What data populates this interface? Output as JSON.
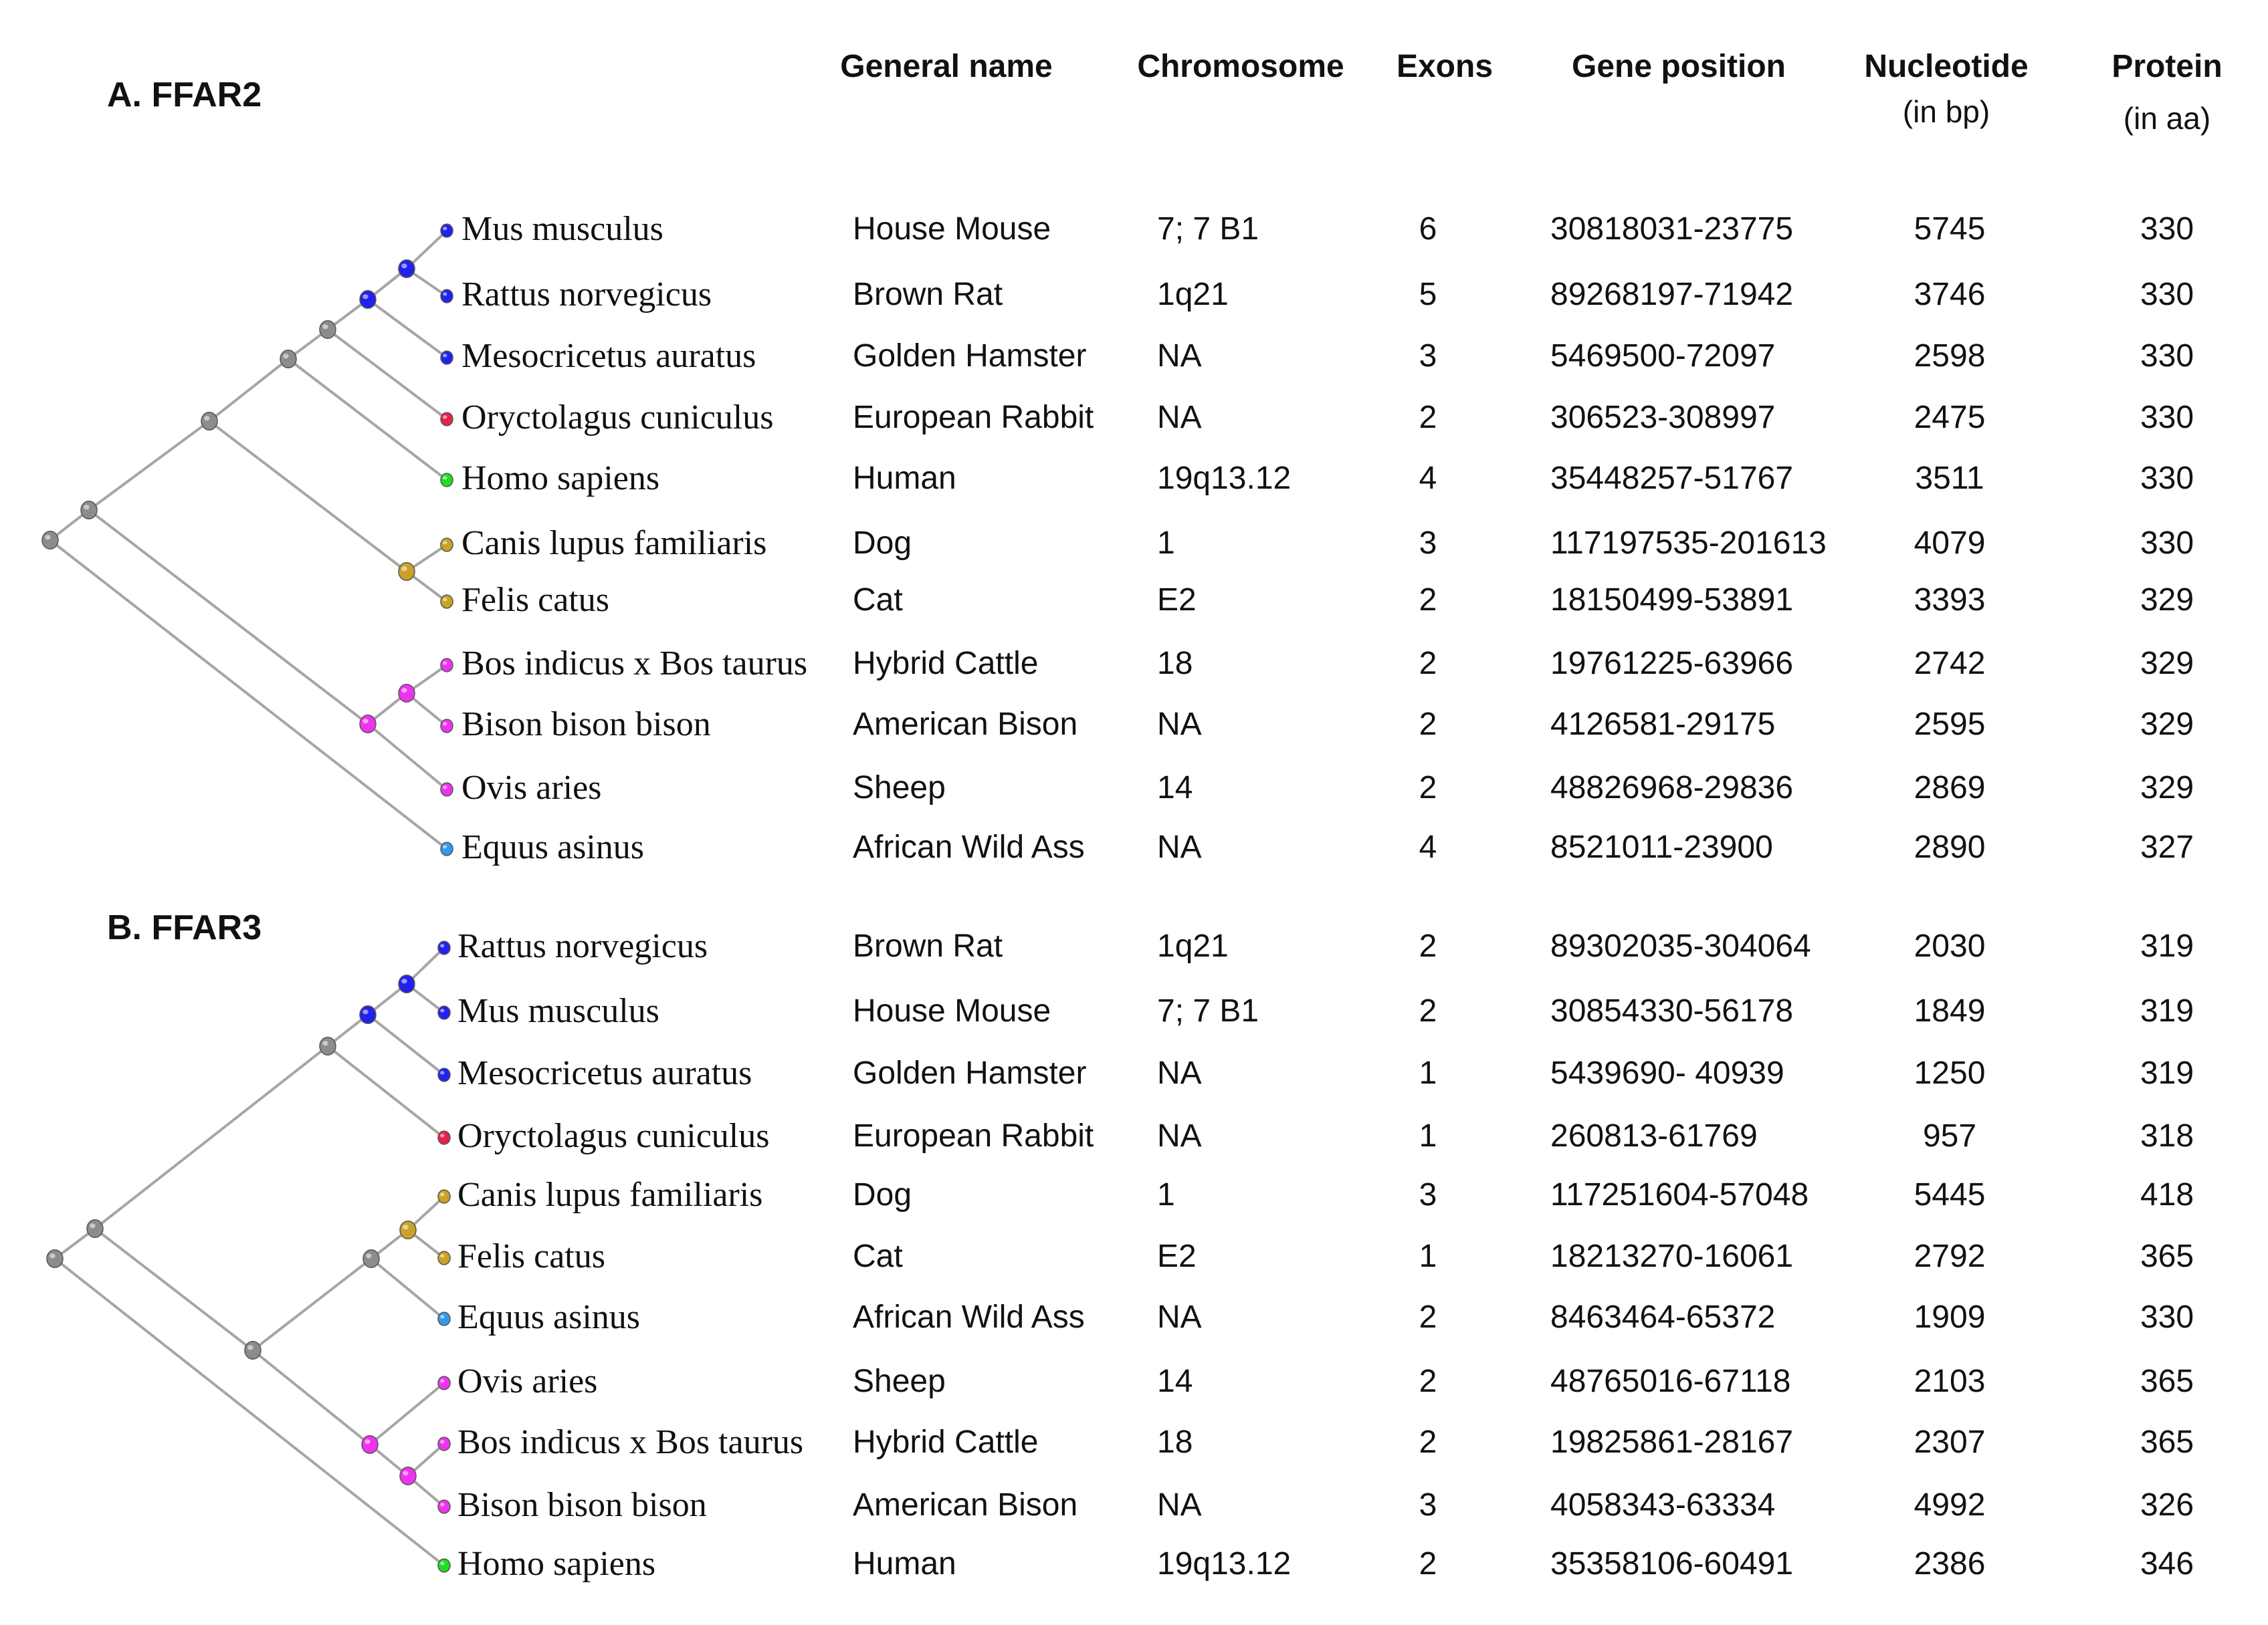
{
  "headers": {
    "general_name": "General name",
    "chromosome": "Chromosome",
    "exons": "Exons",
    "gene_position": "Gene position",
    "nucleotide": "Nucleotide",
    "nucleotide_unit": "(in bp)",
    "protein": "Protein",
    "protein_unit": "(in aa)"
  },
  "colors": {
    "branch": "#a6a6a6",
    "internal_node": "#8c8c8c",
    "rodent": "#2222ee",
    "lagomorph": "#e8214f",
    "primate": "#22dd22",
    "carnivore": "#c9a227",
    "bovid": "#ee33ee",
    "equid": "#3399ee"
  },
  "sections": [
    {
      "title": "A. FFAR2",
      "rows": [
        {
          "species": "Mus musculus",
          "general_name": "House Mouse",
          "chromosome": "7; 7 B1",
          "exons": "6",
          "gene_position": "30818031-23775",
          "nucleotide": "5745",
          "protein": "330",
          "color": "rodent"
        },
        {
          "species": "Rattus norvegicus",
          "general_name": "Brown Rat",
          "chromosome": "1q21",
          "exons": "5",
          "gene_position": "89268197-71942",
          "nucleotide": "3746",
          "protein": "330",
          "color": "rodent"
        },
        {
          "species": "Mesocricetus auratus",
          "general_name": "Golden Hamster",
          "chromosome": "NA",
          "exons": "3",
          "gene_position": "5469500-72097",
          "nucleotide": "2598",
          "protein": "330",
          "color": "rodent"
        },
        {
          "species": "Oryctolagus cuniculus",
          "general_name": "European Rabbit",
          "chromosome": "NA",
          "exons": "2",
          "gene_position": "306523-308997",
          "nucleotide": "2475",
          "protein": "330",
          "color": "lagomorph"
        },
        {
          "species": "Homo sapiens",
          "general_name": "Human",
          "chromosome": "19q13.12",
          "exons": "4",
          "gene_position": "35448257-51767",
          "nucleotide": "3511",
          "protein": "330",
          "color": "primate"
        },
        {
          "species": "Canis lupus familiaris",
          "general_name": "Dog",
          "chromosome": "1",
          "exons": "3",
          "gene_position": "117197535-201613",
          "nucleotide": "4079",
          "protein": "330",
          "color": "carnivore"
        },
        {
          "species": "Felis catus",
          "general_name": "Cat",
          "chromosome": "E2",
          "exons": "2",
          "gene_position": "18150499-53891",
          "nucleotide": "3393",
          "protein": "329",
          "color": "carnivore"
        },
        {
          "species": "Bos indicus x Bos taurus",
          "general_name": "Hybrid Cattle",
          "chromosome": "18",
          "exons": "2",
          "gene_position": "19761225-63966",
          "nucleotide": "2742",
          "protein": "329",
          "color": "bovid"
        },
        {
          "species": "Bison bison bison",
          "general_name": "American Bison",
          "chromosome": "NA",
          "exons": "2",
          "gene_position": "4126581-29175",
          "nucleotide": "2595",
          "protein": "329",
          "color": "bovid"
        },
        {
          "species": "Ovis aries",
          "general_name": "Sheep",
          "chromosome": "14",
          "exons": "2",
          "gene_position": "48826968-29836",
          "nucleotide": "2869",
          "protein": "329",
          "color": "bovid"
        },
        {
          "species": "Equus asinus",
          "general_name": "African Wild Ass",
          "chromosome": "NA",
          "exons": "4",
          "gene_position": "8521011-23900",
          "nucleotide": "2890",
          "protein": "327",
          "color": "equid"
        }
      ]
    },
    {
      "title": "B. FFAR3",
      "rows": [
        {
          "species": "Rattus norvegicus",
          "general_name": "Brown Rat",
          "chromosome": "1q21",
          "exons": "2",
          "gene_position": "89302035-304064",
          "nucleotide": "2030",
          "protein": "319",
          "color": "rodent"
        },
        {
          "species": "Mus musculus",
          "general_name": "House Mouse",
          "chromosome": "7; 7 B1",
          "exons": "2",
          "gene_position": "30854330-56178",
          "nucleotide": "1849",
          "protein": "319",
          "color": "rodent"
        },
        {
          "species": "Mesocricetus auratus",
          "general_name": "Golden Hamster",
          "chromosome": "NA",
          "exons": "1",
          "gene_position": "5439690- 40939",
          "nucleotide": "1250",
          "protein": "319",
          "color": "rodent"
        },
        {
          "species": "Oryctolagus cuniculus",
          "general_name": "European Rabbit",
          "chromosome": "NA",
          "exons": "1",
          "gene_position": "260813-61769",
          "nucleotide": "957",
          "protein": "318",
          "color": "lagomorph"
        },
        {
          "species": "Canis lupus familiaris",
          "general_name": "Dog",
          "chromosome": "1",
          "exons": "3",
          "gene_position": "117251604-57048",
          "nucleotide": "5445",
          "protein": "418",
          "color": "carnivore"
        },
        {
          "species": "Felis catus",
          "general_name": "Cat",
          "chromosome": "E2",
          "exons": "1",
          "gene_position": "18213270-16061",
          "nucleotide": "2792",
          "protein": "365",
          "color": "carnivore"
        },
        {
          "species": "Equus asinus",
          "general_name": "African Wild Ass",
          "chromosome": "NA",
          "exons": "2",
          "gene_position": "8463464-65372",
          "nucleotide": "1909",
          "protein": "330",
          "color": "equid"
        },
        {
          "species": "Ovis aries",
          "general_name": "Sheep",
          "chromosome": "14",
          "exons": "2",
          "gene_position": "48765016-67118",
          "nucleotide": "2103",
          "protein": "365",
          "color": "bovid"
        },
        {
          "species": "Bos indicus x Bos taurus",
          "general_name": "Hybrid Cattle",
          "chromosome": "18",
          "exons": "2",
          "gene_position": "19825861-28167",
          "nucleotide": "2307",
          "protein": "365",
          "color": "bovid"
        },
        {
          "species": "Bison bison bison",
          "general_name": "American Bison",
          "chromosome": "NA",
          "exons": "3",
          "gene_position": "4058343-63334",
          "nucleotide": "4992",
          "protein": "326",
          "color": "bovid"
        },
        {
          "species": "Homo sapiens",
          "general_name": "Human",
          "chromosome": "19q13.12",
          "exons": "2",
          "gene_position": "35358106-60491",
          "nucleotide": "2386",
          "protein": "346",
          "color": "primate"
        }
      ]
    }
  ]
}
